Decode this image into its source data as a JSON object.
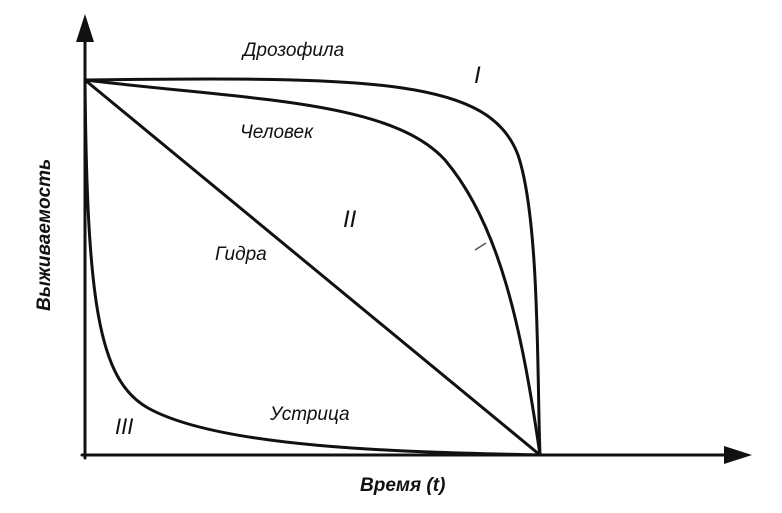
{
  "diagram": {
    "axes": {
      "y_label": "Выживаемость",
      "x_label": "Время (t)"
    },
    "curves": [
      {
        "type": "I",
        "name": "Дрозофила"
      },
      {
        "type": "II",
        "name": "Человек"
      },
      {
        "type": "",
        "name": "Гидра"
      },
      {
        "type": "III",
        "name": "Устрица"
      }
    ],
    "line_color": "#111111"
  }
}
